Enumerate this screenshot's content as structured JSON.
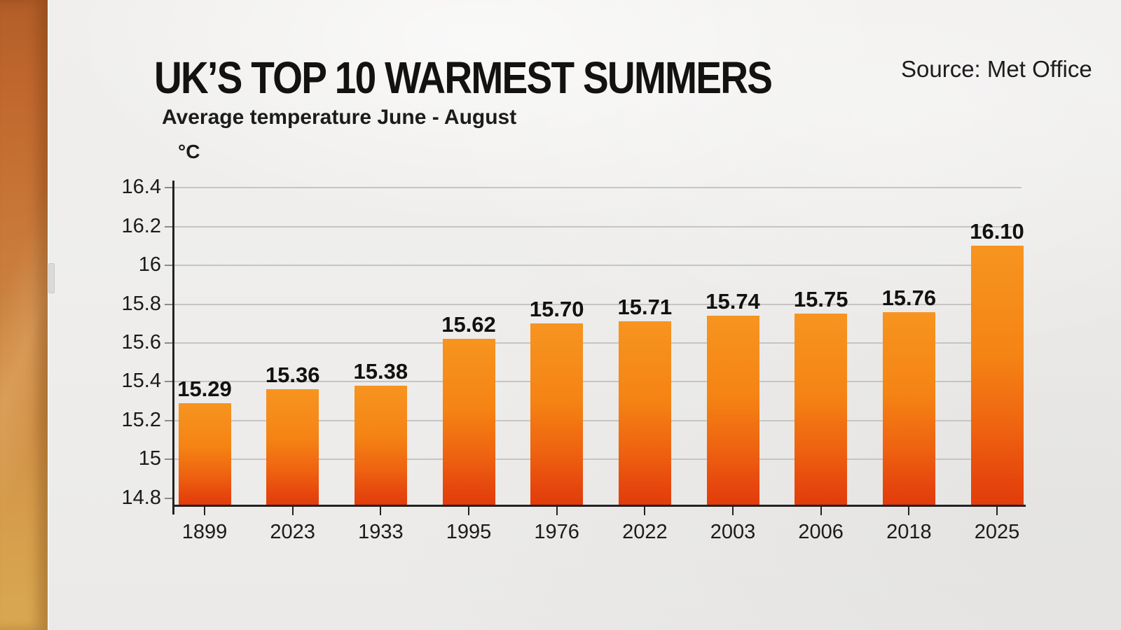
{
  "page": {
    "title": "UK’S TOP 10 WARMEST SUMMERS",
    "subtitle": "Average temperature June - August",
    "source": "Source: Met Office",
    "unit": "°C"
  },
  "chart_data": {
    "type": "bar",
    "title": "UK’S TOP 10 WARMEST SUMMERS",
    "subtitle": "Average temperature June - August",
    "source": "Met Office",
    "xlabel": "",
    "ylabel": "°C",
    "categories": [
      "1899",
      "2023",
      "1933",
      "1995",
      "1976",
      "2022",
      "2003",
      "2006",
      "2018",
      "2025"
    ],
    "values": [
      15.29,
      15.36,
      15.38,
      15.62,
      15.7,
      15.71,
      15.74,
      15.75,
      15.76,
      16.1
    ],
    "value_labels": [
      "15.29",
      "15.36",
      "15.38",
      "15.62",
      "15.70",
      "15.71",
      "15.74",
      "15.75",
      "15.76",
      "16.10"
    ],
    "ylim": [
      14.8,
      16.4
    ],
    "yticks": [
      14.8,
      15,
      15.2,
      15.4,
      15.6,
      15.8,
      16,
      16.2,
      16.4
    ],
    "ytick_labels": [
      "14.8",
      "15",
      "15.2",
      "15.4",
      "15.6",
      "15.8",
      "16",
      "16.2",
      "16.4"
    ],
    "grid": true,
    "legend": "none",
    "bar_gradient_top": "#F79420",
    "bar_gradient_bottom": "#E23C0C"
  },
  "colors": {
    "panel_background": "#EFEEEC",
    "left_strip_top": "#B25D28",
    "left_strip_bottom": "#D9A851",
    "text": "#1A1A1A",
    "gridline": "#C6C5C3",
    "axis": "#222222",
    "bar_top": "#F79420",
    "bar_bottom": "#E23C0C",
    "edge_handle": "#DBDAD6"
  }
}
